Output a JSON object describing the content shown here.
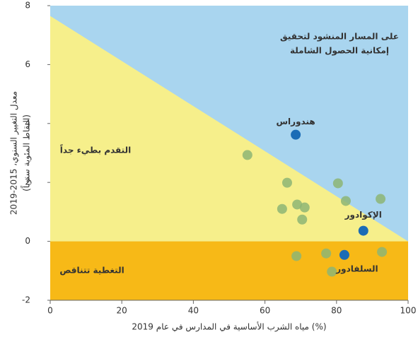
{
  "chart_data": {
    "type": "scatter",
    "xlabel": "مياه الشرب الأساسية في المدارس في عام 2019 (%)",
    "ylabel": [
      "معدل التغيير السنوي، 2015-2019",
      "(النقاط المئوية سنوياً)"
    ],
    "xlim": [
      0,
      100
    ],
    "xticks": [
      0,
      20,
      40,
      60,
      80,
      100
    ],
    "ylim": [
      -2,
      8
    ],
    "yticks": [
      -2,
      0,
      2,
      4,
      6,
      8
    ],
    "boundary": {
      "x": [
        0,
        100
      ],
      "values": [
        7.65,
        0
      ]
    },
    "region_colors": {
      "above": "#a9d5ef",
      "below": "#f6ef8b",
      "negative": "#f7b917"
    },
    "annotations": [
      "على المسار المنشود لتحقيق",
      "إمكانية الحصول الشاملة",
      "التقدم بطيء جداً",
      "التغطية تتناقص"
    ],
    "series": [
      {
        "color": "#8db574",
        "x": [
          55.1,
          66.2,
          64.8,
          69,
          71.1,
          70.4,
          80.4,
          82.6,
          92.3,
          68.8,
          77.1,
          78.7,
          92.7
        ],
        "values": [
          2.93,
          1.99,
          1.1,
          1.25,
          1.15,
          0.74,
          1.97,
          1.37,
          1.44,
          -0.5,
          -0.41,
          -1.03,
          -0.36
        ]
      },
      {
        "color": "#1b6cb6",
        "x": [
          68.6,
          87.5,
          82.2
        ],
        "values": [
          3.62,
          0.36,
          -0.46
        ],
        "labels": [
          "هندوراس",
          "الإكوادور",
          "السلفادور"
        ]
      }
    ]
  }
}
